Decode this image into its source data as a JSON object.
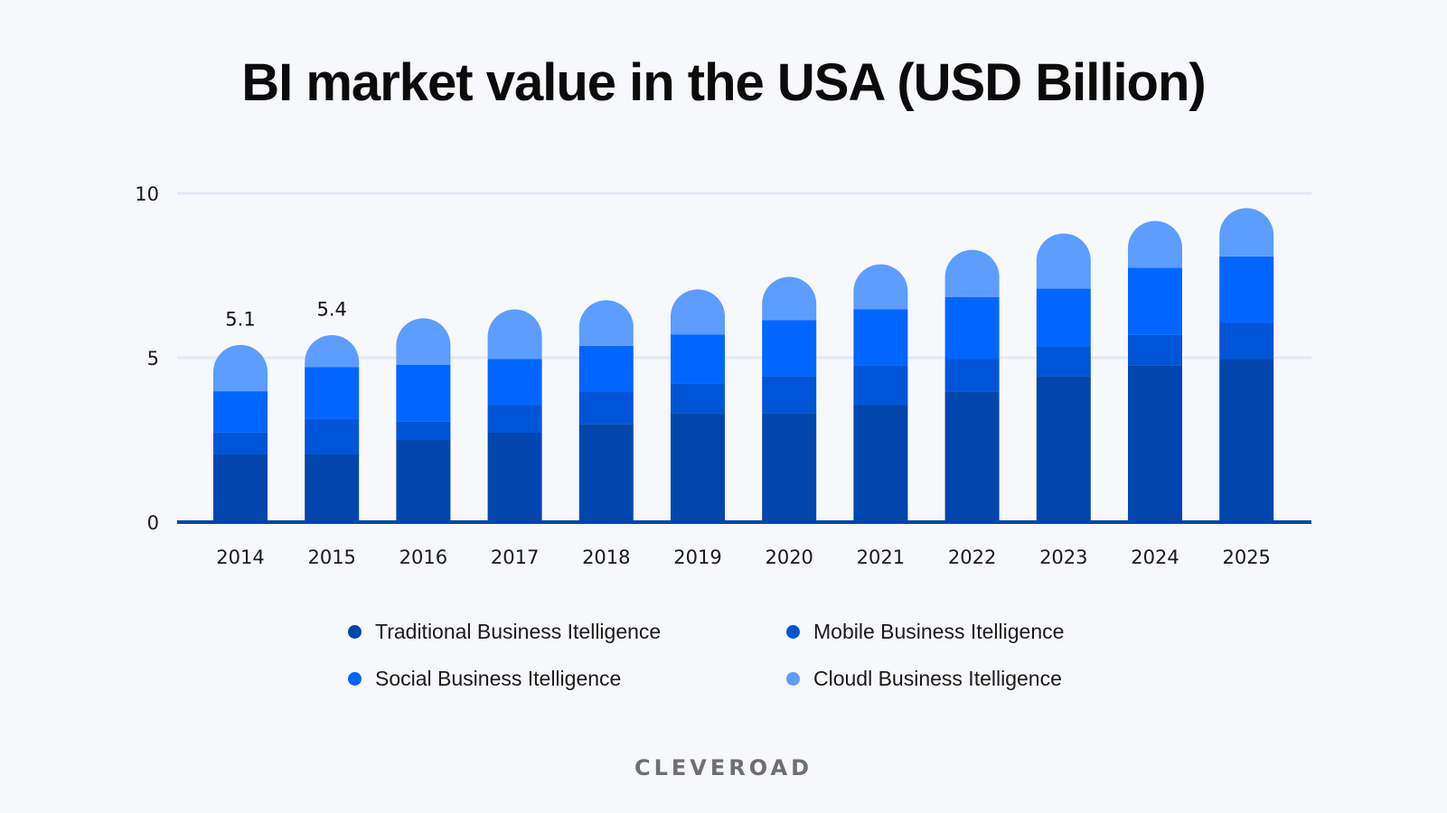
{
  "chart_data": {
    "type": "bar",
    "stacked": true,
    "title": "BI market value in the USA (USD Billion)",
    "xlabel": "",
    "ylabel": "",
    "ylim": [
      0,
      10
    ],
    "yticks": [
      "0",
      "5",
      "10"
    ],
    "grid": true,
    "legend_position": "bottom",
    "categories": [
      "2014",
      "2015",
      "2016",
      "2017",
      "2018",
      "2019",
      "2020",
      "2021",
      "2022",
      "2023",
      "2024",
      "2025"
    ],
    "series": [
      {
        "name": "Traditional Business Itelligence",
        "color": "#0046AD",
        "values": [
          2.06,
          2.06,
          2.5,
          2.72,
          2.99,
          3.32,
          3.32,
          3.57,
          3.98,
          4.44,
          4.77,
          4.96
        ]
      },
      {
        "name": "Mobile Business Itelligence",
        "color": "#0055D6",
        "values": [
          0.67,
          1.09,
          0.57,
          0.85,
          0.99,
          0.9,
          1.12,
          1.2,
          0.98,
          0.89,
          0.92,
          1.11
        ]
      },
      {
        "name": "Social Business Itelligence",
        "color": "#0066FF",
        "values": [
          1.25,
          1.57,
          1.71,
          1.39,
          1.38,
          1.49,
          1.7,
          1.7,
          1.88,
          1.77,
          2.05,
          2.01
        ]
      },
      {
        "name": "Cloudl Business Itelligence",
        "color": "#5C9DFF",
        "values": [
          1.12,
          0.68,
          1.13,
          1.22,
          1.1,
          1.08,
          1.03,
          1.08,
          1.15,
          1.39,
          1.13,
          1.18
        ]
      }
    ],
    "data_labels": [
      {
        "category": "2014",
        "text": "5.1"
      },
      {
        "category": "2015",
        "text": "5.4"
      }
    ]
  },
  "brand": {
    "logo_text": "CLEVEROAD"
  }
}
